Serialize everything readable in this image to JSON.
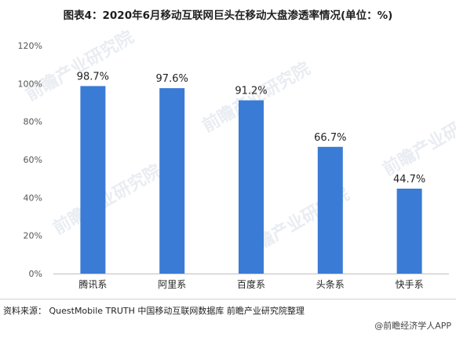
{
  "chart_data": {
    "type": "bar",
    "title": "图表4：2020年6月移动互联网巨头在移动大盘渗透率情况(单位：%)",
    "categories": [
      "腾讯系",
      "阿里系",
      "百度系",
      "头条系",
      "快手系"
    ],
    "values": [
      98.7,
      97.6,
      91.2,
      66.7,
      44.7
    ],
    "data_labels": [
      "98.7%",
      "97.6%",
      "91.2%",
      "66.7%",
      "44.7%"
    ],
    "y_ticks": [
      0,
      20,
      40,
      60,
      80,
      100,
      120
    ],
    "y_tick_labels": [
      "0%",
      "20%",
      "40%",
      "60%",
      "80%",
      "100%",
      "120%"
    ],
    "ylim": [
      0,
      120
    ],
    "xlabel": "",
    "ylabel": "",
    "grid": false,
    "bar_color": "#3a7bd5"
  },
  "source_text": "资料来源： QuestMobile TRUTH 中国移动互联网数据库 前瞻产业研究院整理",
  "credit_text": "@前瞻经济学人APP",
  "watermark_text": "前瞻产业研究院"
}
